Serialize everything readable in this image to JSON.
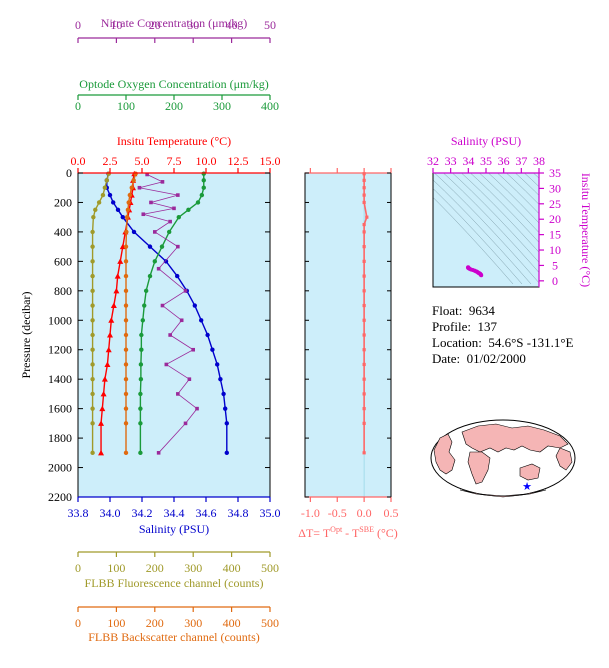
{
  "float_info": {
    "float_label": "Float:",
    "float_value": "9634",
    "profile_label": "Profile:",
    "profile_value": "137",
    "location_label": "Location:",
    "location_value": "54.6°S  -131.1°E",
    "date_label": "Date:",
    "date_value": "01/02/2000"
  },
  "colors": {
    "panel_bg": "#cdeefa",
    "nitrate": "#9b2a9b",
    "oxygen": "#1a9a3a",
    "temperature": "#ff0000",
    "salinity": "#0000cc",
    "fluorescence": "#a09a2a",
    "backscatter": "#e06a10",
    "delta_t": "#ff6666",
    "ts_salinity": "#cc00cc"
  },
  "axes": {
    "nitrate": {
      "title": "Nitrate Concentration (μm/kg)",
      "ticks": [
        "0",
        "10",
        "20",
        "30",
        "40",
        "50"
      ]
    },
    "oxygen": {
      "title": "Optode Oxygen Concentration (μm/kg)",
      "ticks": [
        "0",
        "100",
        "200",
        "300",
        "400"
      ]
    },
    "temperature": {
      "title": "Insitu Temperature (°C)",
      "ticks": [
        "0.0",
        "2.5",
        "5.0",
        "7.5",
        "10.0",
        "12.5",
        "15.0"
      ]
    },
    "pressure": {
      "title": "Pressure (decibar)",
      "ticks": [
        "0",
        "200",
        "400",
        "600",
        "800",
        "1000",
        "1200",
        "1400",
        "1600",
        "1800",
        "2000",
        "2200"
      ]
    },
    "salinity": {
      "title": "Salinity (PSU)",
      "ticks": [
        "33.8",
        "34.0",
        "34.2",
        "34.4",
        "34.6",
        "34.8",
        "35.0"
      ]
    },
    "fluorescence": {
      "title": "FLBB Fluorescence channel (counts)",
      "ticks": [
        "0",
        "100",
        "200",
        "300",
        "400",
        "500"
      ]
    },
    "backscatter": {
      "title": "FLBB Backscatter channel (counts)",
      "ticks": [
        "0",
        "100",
        "200",
        "300",
        "400",
        "500"
      ]
    },
    "delta_t": {
      "title_prefix": "ΔT= T",
      "title_sup1": "Opt",
      "title_mid": " - T",
      "title_sup2": "SBE",
      "title_suffix": " (°C)",
      "ticks": [
        "-1.0",
        "-0.5",
        "0.0",
        "0.5"
      ]
    },
    "ts_salinity": {
      "title": "Salinity (PSU)",
      "ticks": [
        "32",
        "33",
        "34",
        "35",
        "36",
        "37",
        "38"
      ]
    },
    "ts_temperature": {
      "title": "Insitu Temperature (°C)",
      "ticks": [
        "0",
        "5",
        "10",
        "15",
        "20",
        "25",
        "30",
        "35"
      ]
    }
  },
  "chart_data": [
    {
      "type": "line",
      "title": "",
      "ylabel": "Pressure (decibar)",
      "ylim": [
        2200,
        0
      ],
      "series": [
        {
          "name": "Insitu Temperature (°C)",
          "xlim": [
            0,
            15
          ],
          "x": [
            4.4,
            4.3,
            4.3,
            4.2,
            4.1,
            4.0,
            3.9,
            3.7,
            3.5,
            3.3,
            3.1,
            3.0,
            2.8,
            2.6,
            2.5,
            2.4,
            2.3,
            2.1,
            2.0,
            1.9,
            1.8,
            1.8
          ],
          "y": [
            5,
            50,
            100,
            150,
            200,
            250,
            300,
            400,
            500,
            600,
            700,
            800,
            900,
            1000,
            1100,
            1200,
            1300,
            1400,
            1500,
            1600,
            1700,
            1900
          ]
        },
        {
          "name": "Salinity (PSU)",
          "xlim": [
            33.8,
            35.0
          ],
          "x": [
            33.99,
            33.98,
            33.98,
            34.0,
            34.02,
            34.05,
            34.08,
            34.15,
            34.25,
            34.35,
            34.42,
            34.48,
            34.53,
            34.57,
            34.61,
            34.64,
            34.67,
            34.69,
            34.71,
            34.72,
            34.73,
            34.73
          ],
          "y": [
            5,
            50,
            100,
            150,
            200,
            250,
            300,
            400,
            500,
            600,
            700,
            800,
            900,
            1000,
            1100,
            1200,
            1300,
            1400,
            1500,
            1600,
            1700,
            1900
          ]
        },
        {
          "name": "Optode Oxygen Concentration (μm/kg)",
          "xlim": [
            0,
            400
          ],
          "x": [
            262,
            262,
            262,
            258,
            250,
            230,
            210,
            190,
            175,
            160,
            150,
            142,
            138,
            135,
            132,
            132,
            131,
            131,
            130,
            130,
            130,
            130
          ],
          "y": [
            5,
            50,
            100,
            150,
            200,
            250,
            300,
            400,
            500,
            600,
            700,
            800,
            900,
            1000,
            1100,
            1200,
            1300,
            1400,
            1500,
            1600,
            1700,
            1900
          ]
        },
        {
          "name": "Nitrate Concentration (μm/kg)",
          "xlim": [
            0,
            50
          ],
          "x": [
            18,
            22,
            16,
            26,
            19,
            25,
            17,
            24,
            20,
            26,
            21,
            28,
            22,
            27,
            24,
            30,
            23,
            29,
            26,
            31,
            28,
            21
          ],
          "y": [
            10,
            60,
            100,
            150,
            200,
            240,
            280,
            330,
            400,
            500,
            650,
            800,
            900,
            1000,
            1100,
            1200,
            1300,
            1400,
            1500,
            1600,
            1700,
            1900
          ]
        },
        {
          "name": "FLBB Fluorescence channel (counts)",
          "xlim": [
            0,
            500
          ],
          "x": [
            80,
            75,
            70,
            65,
            55,
            45,
            40,
            38,
            38,
            38,
            38,
            38,
            38,
            38,
            38,
            38,
            38,
            38,
            38,
            38,
            38,
            38
          ],
          "y": [
            5,
            50,
            100,
            150,
            200,
            250,
            300,
            400,
            500,
            600,
            700,
            800,
            900,
            1000,
            1100,
            1200,
            1300,
            1400,
            1500,
            1600,
            1700,
            1900
          ]
        },
        {
          "name": "FLBB Backscatter channel (counts)",
          "xlim": [
            0,
            500
          ],
          "x": [
            150,
            145,
            140,
            135,
            132,
            130,
            128,
            126,
            125,
            125,
            125,
            125,
            125,
            125,
            125,
            125,
            125,
            125,
            125,
            125,
            125,
            125
          ],
          "y": [
            5,
            50,
            100,
            150,
            200,
            250,
            300,
            400,
            500,
            600,
            700,
            800,
            900,
            1000,
            1100,
            1200,
            1300,
            1400,
            1500,
            1600,
            1700,
            1900
          ]
        }
      ]
    },
    {
      "type": "line",
      "title": "",
      "xlabel": "ΔT= TOpt - TSBE (°C)",
      "xlim": [
        -1.1,
        0.5
      ],
      "ylim": [
        2200,
        0
      ],
      "series": [
        {
          "name": "ΔT",
          "x": [
            0.0,
            0.0,
            0.0,
            0.0,
            0.0,
            0.05,
            0.0,
            0.0,
            0.0,
            0.0,
            0.0,
            0.0,
            0.0,
            0.0,
            0.0,
            0.0,
            0.0,
            0.0,
            0.0,
            0.0,
            0.0,
            0.0
          ],
          "y": [
            5,
            50,
            100,
            150,
            200,
            300,
            350,
            400,
            500,
            600,
            700,
            800,
            900,
            1000,
            1100,
            1200,
            1300,
            1400,
            1500,
            1600,
            1700,
            1900
          ]
        }
      ]
    },
    {
      "type": "scatter",
      "title": "",
      "xlabel": "Salinity (PSU)",
      "ylabel": "Insitu Temperature (°C)",
      "xlim": [
        32,
        38
      ],
      "ylim": [
        -2,
        35
      ],
      "series": [
        {
          "name": "T-S",
          "x": [
            33.99,
            33.98,
            34.0,
            34.02,
            34.05,
            34.08,
            34.15,
            34.25,
            34.35,
            34.42,
            34.48,
            34.53,
            34.57,
            34.61,
            34.64,
            34.67,
            34.69,
            34.71,
            34.72,
            34.73
          ],
          "y": [
            4.4,
            4.3,
            4.2,
            4.1,
            4.0,
            3.9,
            3.7,
            3.5,
            3.3,
            3.1,
            3.0,
            2.8,
            2.6,
            2.5,
            2.4,
            2.3,
            2.1,
            2.0,
            1.9,
            1.8
          ]
        }
      ]
    }
  ]
}
